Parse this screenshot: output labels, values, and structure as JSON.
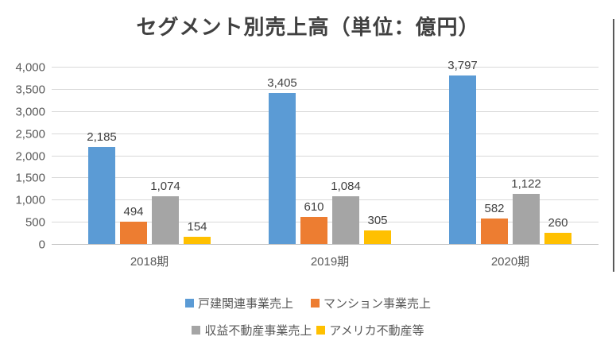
{
  "chart_data": {
    "type": "bar",
    "title": "セグメント別売上高（単位：億円）",
    "categories": [
      "2018期",
      "2019期",
      "2020期"
    ],
    "series": [
      {
        "name": "戸建関連事業売上",
        "color": "#5B9BD5",
        "values": [
          2185,
          3405,
          3797
        ]
      },
      {
        "name": "マンション事業売上",
        "color": "#ED7D31",
        "values": [
          494,
          610,
          582
        ]
      },
      {
        "name": "収益不動産事業売上",
        "color": "#A5A5A5",
        "values": [
          1074,
          1084,
          1122
        ]
      },
      {
        "name": "アメリカ不動産等",
        "color": "#FFC000",
        "values": [
          154,
          305,
          260
        ]
      }
    ],
    "data_labels": [
      [
        "2,185",
        "494",
        "1,074",
        "154"
      ],
      [
        "3,405",
        "610",
        "1,084",
        "305"
      ],
      [
        "3,797",
        "582",
        "1,122",
        "260"
      ]
    ],
    "yticks": [
      "0",
      "500",
      "1,000",
      "1,500",
      "2,000",
      "2,500",
      "3,000",
      "3,500",
      "4,000"
    ],
    "ylim": [
      0,
      4000
    ],
    "grid": true,
    "legend_position": "bottom",
    "legend_rows": [
      [
        0,
        1
      ],
      [
        2,
        3
      ]
    ]
  },
  "colors": {
    "gridline": "#d9d9d9",
    "axis_line": "#bfbfbf",
    "tick_label": "#595959",
    "data_label": "#404040",
    "title": "#404040",
    "right_border": "#595959"
  }
}
